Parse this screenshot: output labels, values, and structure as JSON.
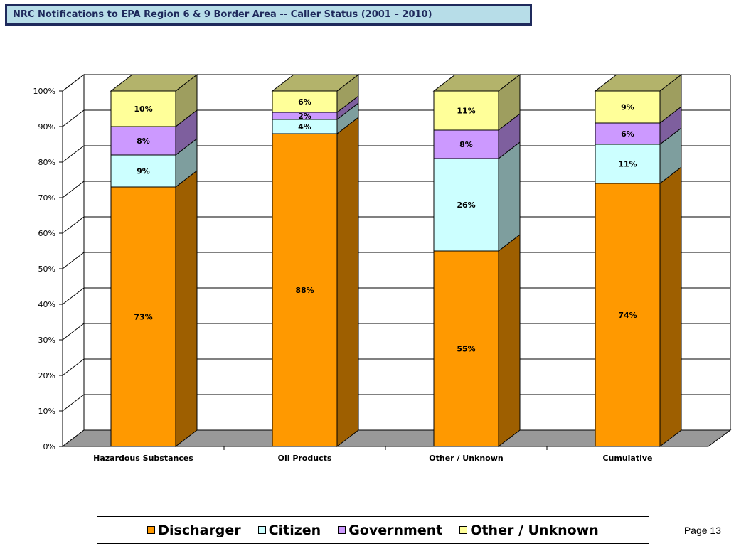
{
  "title": "NRC Notifications to EPA Region  6 & 9  Border Area  -- Caller Status (2001 – 2010)",
  "page_label": "Page 13",
  "chart_data": {
    "type": "bar",
    "stacked": true,
    "percent_stacked": true,
    "three_d": true,
    "categories": [
      "Hazardous Substances",
      "Oil Products",
      "Other / Unknown",
      "Cumulative"
    ],
    "series": [
      {
        "name": "Discharger",
        "color": "#ff9900",
        "values": [
          73,
          88,
          55,
          74
        ],
        "labels": [
          "73%",
          "88%",
          "55%",
          "74%"
        ]
      },
      {
        "name": "Citizen",
        "color": "#ccffff",
        "values": [
          9,
          4,
          26,
          11
        ],
        "labels": [
          "9%",
          "4%",
          "26%",
          "11%"
        ]
      },
      {
        "name": "Government",
        "color": "#cc99ff",
        "values": [
          8,
          2,
          8,
          6
        ],
        "labels": [
          "8%",
          "2%",
          "8%",
          "6%"
        ]
      },
      {
        "name": "Other / Unknown",
        "color": "#ffff99",
        "values": [
          10,
          6,
          11,
          9
        ],
        "labels": [
          "10%",
          "6%",
          "11%",
          "9%"
        ]
      }
    ],
    "yticks": [
      "0%",
      "10%",
      "20%",
      "30%",
      "40%",
      "50%",
      "60%",
      "70%",
      "80%",
      "90%",
      "100%"
    ],
    "ylim": [
      0,
      100
    ],
    "grid": true,
    "legend_position": "bottom"
  }
}
